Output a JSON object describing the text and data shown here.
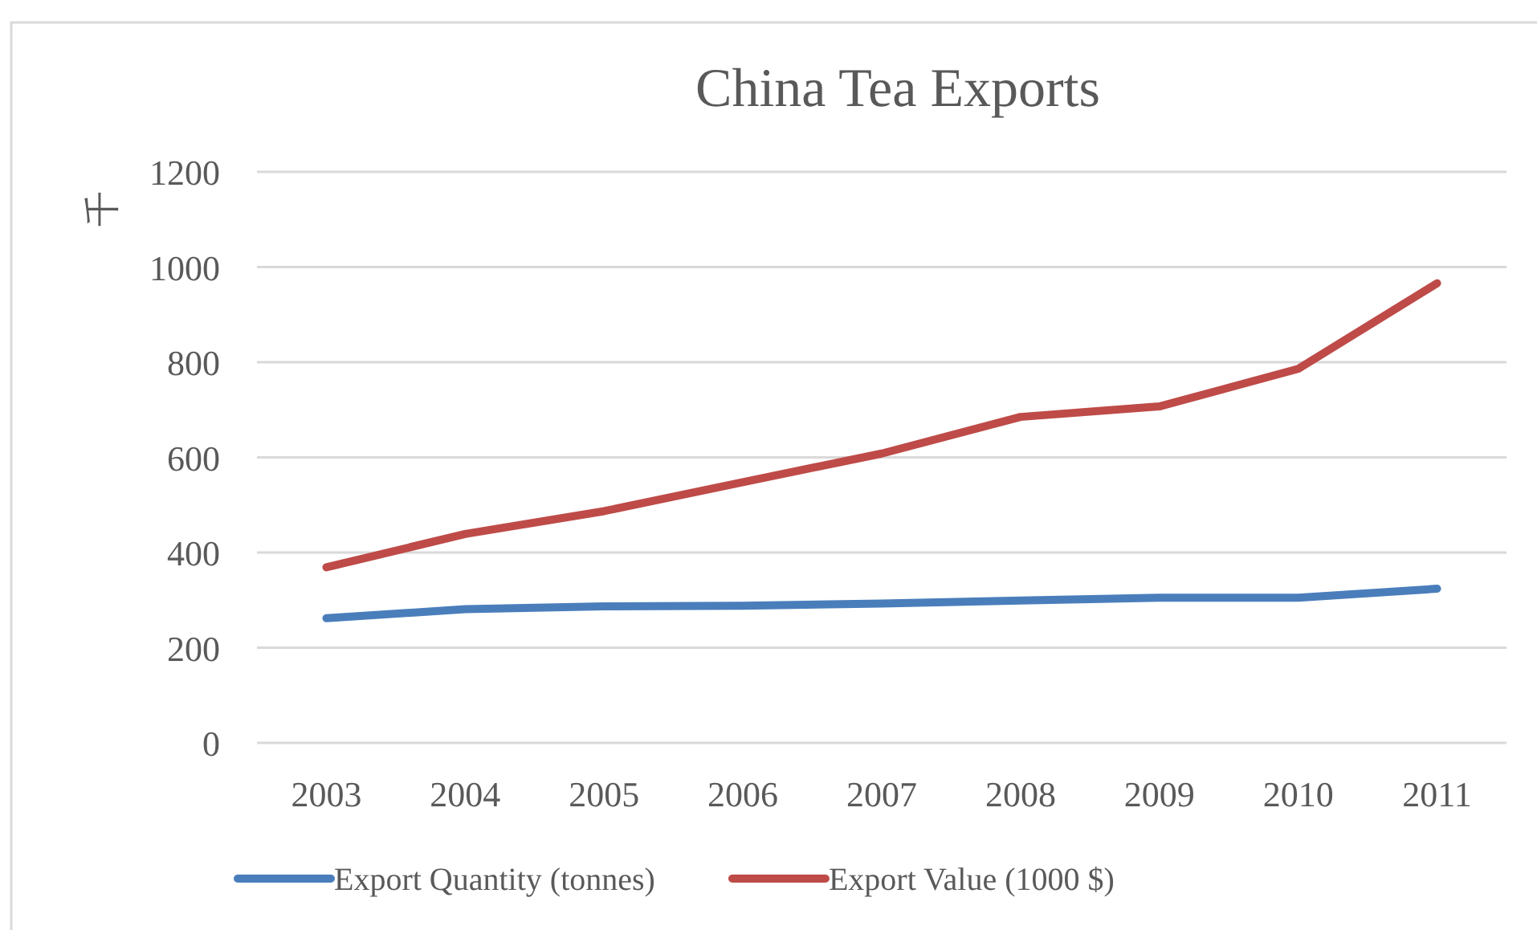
{
  "chart_data": {
    "type": "line",
    "title": "China Tea Exports",
    "ylabel": "千",
    "categories": [
      "2003",
      "2004",
      "2005",
      "2006",
      "2007",
      "2008",
      "2009",
      "2010",
      "2011"
    ],
    "series": [
      {
        "name": "Export Quantity (tonnes)",
        "color": "#4a7ebb",
        "values": [
          262,
          281,
          287,
          288,
          293,
          299,
          305,
          305,
          324
        ]
      },
      {
        "name": "Export Value (1000 $)",
        "color": "#be4b48",
        "values": [
          369,
          439,
          487,
          548,
          608,
          685,
          707,
          786,
          966
        ]
      }
    ],
    "ylim": [
      0,
      1200
    ],
    "yticks": [
      0,
      200,
      400,
      600,
      800,
      1000,
      1200
    ],
    "grid": "y",
    "legend": "bottom",
    "marker": "none",
    "line_style": "solid"
  }
}
